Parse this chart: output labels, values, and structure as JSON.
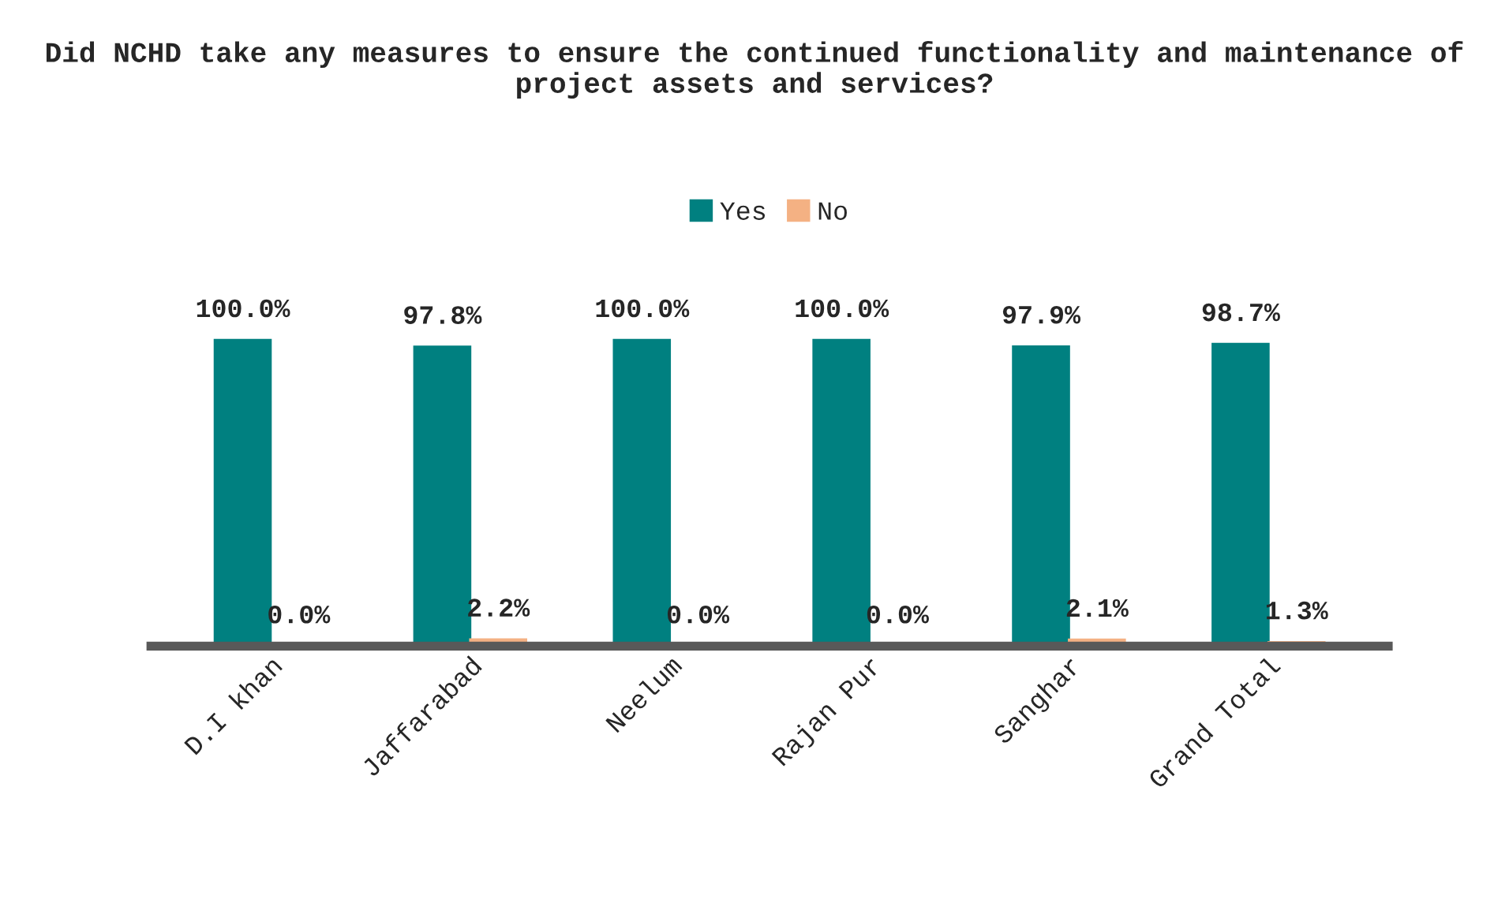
{
  "chart_data": {
    "type": "bar",
    "title": "Did NCHD take any measures to ensure the continued functionality and maintenance of project assets and services?",
    "categories": [
      "D.I khan",
      "Jaffarabad",
      "Neelum",
      "Rajan Pur",
      "Sanghar",
      "Grand Total"
    ],
    "series": [
      {
        "name": "Yes",
        "color": "#008080",
        "values": [
          100.0,
          97.8,
          100.0,
          100.0,
          97.9,
          98.7
        ],
        "value_labels": [
          "100.0%",
          "97.8%",
          "100.0%",
          "100.0%",
          "97.9%",
          "98.7%"
        ]
      },
      {
        "name": "No",
        "color": "#f4b183",
        "values": [
          0.0,
          2.2,
          0.0,
          0.0,
          2.1,
          1.3
        ],
        "value_labels": [
          "0.0%",
          "2.2%",
          "0.0%",
          "0.0%",
          "2.1%",
          "1.3%"
        ]
      }
    ],
    "legend": "top",
    "grid": false
  }
}
